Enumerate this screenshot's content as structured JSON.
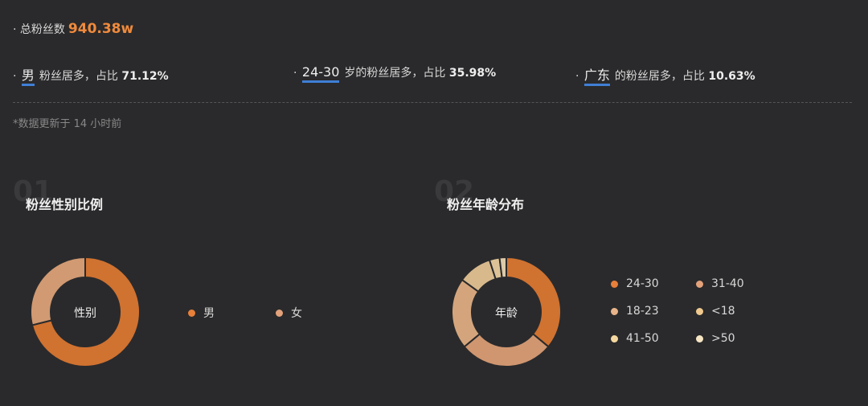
{
  "summary": {
    "total_label": "· 总粉丝数",
    "total_value": "940.38w"
  },
  "stats": [
    {
      "key": "男",
      "text": "粉丝居多，占比",
      "pct": "71.12%"
    },
    {
      "key": "24-30",
      "text": "岁的粉丝居多，占比",
      "pct": "35.98%"
    },
    {
      "key": "广东",
      "text": "的粉丝居多，占比",
      "pct": "10.63%"
    }
  ],
  "update_note": "*数据更新于 14 小时前",
  "sections": [
    {
      "num": "01",
      "title": "粉丝性别比例",
      "center": "性别"
    },
    {
      "num": "02",
      "title": "粉丝年龄分布",
      "center": "年龄"
    }
  ],
  "chart_data": [
    {
      "type": "pie",
      "title": "粉丝性别比例",
      "categories": [
        "男",
        "女"
      ],
      "values": [
        71.12,
        28.88
      ],
      "colors": [
        "#d07230",
        "#d19a72"
      ],
      "legend_colors": [
        "#e8803a",
        "#e3a27a"
      ],
      "legend": "right"
    },
    {
      "type": "pie",
      "title": "粉丝年龄分布",
      "categories": [
        "24-30",
        "31-40",
        "18-23",
        "<18",
        "41-50",
        ">50"
      ],
      "values": [
        35.98,
        28,
        21,
        10,
        3,
        2
      ],
      "colors": [
        "#d07230",
        "#cf9670",
        "#d4a57c",
        "#d8b98c",
        "#dcc296",
        "#dccaa8"
      ],
      "legend_colors": [
        "#e8803a",
        "#e3a27a",
        "#e9b48a",
        "#f0c98f",
        "#f5d8a0",
        "#f7e6c4"
      ],
      "legend": "right"
    }
  ]
}
